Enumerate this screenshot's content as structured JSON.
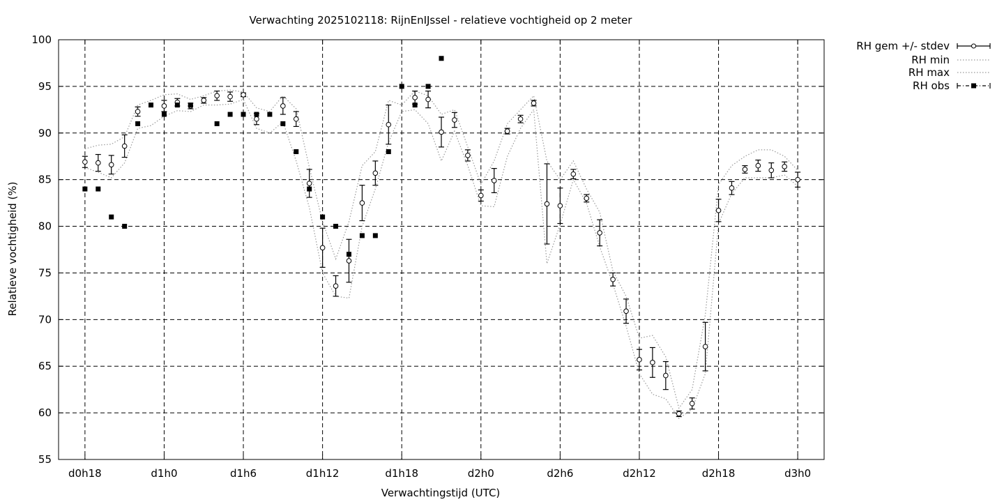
{
  "chart_data": {
    "type": "line",
    "title": "Verwachting 2025102118: RijnEnIJssel - relatieve vochtigheid op 2 meter",
    "xlabel": "Verwachtingstijd (UTC)",
    "ylabel": "Relatieve vochtigheid (%)",
    "xlim": [
      16,
      74
    ],
    "ylim": [
      55,
      100
    ],
    "x_ticks": [
      {
        "value": 18,
        "label": "d0h18"
      },
      {
        "value": 24,
        "label": "d1h0"
      },
      {
        "value": 30,
        "label": "d1h6"
      },
      {
        "value": 36,
        "label": "d1h12"
      },
      {
        "value": 42,
        "label": "d1h18"
      },
      {
        "value": 48,
        "label": "d2h0"
      },
      {
        "value": 54,
        "label": "d2h6"
      },
      {
        "value": 60,
        "label": "d2h12"
      },
      {
        "value": 66,
        "label": "d2h18"
      },
      {
        "value": 72,
        "label": "d3h0"
      }
    ],
    "y_ticks": [
      55,
      60,
      65,
      70,
      75,
      80,
      85,
      90,
      95,
      100
    ],
    "grid": true,
    "legend_position": "outside top-right",
    "x": [
      18,
      19,
      20,
      21,
      22,
      23,
      24,
      25,
      26,
      27,
      28,
      29,
      30,
      31,
      32,
      33,
      34,
      35,
      36,
      37,
      38,
      39,
      40,
      41,
      42,
      43,
      44,
      45,
      46,
      47,
      48,
      49,
      50,
      51,
      52,
      53,
      54,
      55,
      56,
      57,
      58,
      59,
      60,
      61,
      62,
      63,
      64,
      65,
      66,
      67,
      68,
      69,
      70,
      71,
      72
    ],
    "series": [
      {
        "name": "RH gem +/- stdev",
        "style": "errorbars",
        "mean": [
          86.9,
          86.8,
          86.6,
          88.6,
          92.3,
          null,
          92.9,
          93.3,
          92.9,
          93.5,
          94.0,
          93.9,
          94.1,
          91.5,
          null,
          92.9,
          91.5,
          84.6,
          77.7,
          73.6,
          76.3,
          82.5,
          85.7,
          90.9,
          null,
          93.8,
          93.6,
          90.1,
          91.4,
          87.6,
          83.3,
          84.9,
          90.2,
          91.5,
          93.2,
          82.4,
          82.2,
          85.6,
          83.0,
          79.3,
          74.3,
          70.9,
          65.7,
          65.4,
          64.0,
          59.9,
          61.0,
          67.1,
          81.7,
          84.1,
          86.1,
          86.5,
          86.0,
          86.4,
          85.0
        ],
        "stdev": [
          0.6,
          0.9,
          1.0,
          1.2,
          0.5,
          null,
          0.6,
          0.4,
          0.3,
          0.3,
          0.5,
          0.5,
          0.2,
          0.6,
          null,
          0.9,
          0.8,
          1.5,
          2.1,
          1.1,
          2.3,
          1.9,
          1.3,
          2.1,
          null,
          0.7,
          0.9,
          1.6,
          0.8,
          0.6,
          0.6,
          1.3,
          0.3,
          0.4,
          0.3,
          4.3,
          1.9,
          0.5,
          0.4,
          1.4,
          0.7,
          1.3,
          1.1,
          1.6,
          1.5,
          0.3,
          0.6,
          2.6,
          1.2,
          0.7,
          0.4,
          0.6,
          0.8,
          0.5,
          0.8
        ]
      },
      {
        "name": "RH min",
        "style": "dotted",
        "values": [
          86.3,
          85.8,
          85.2,
          86.8,
          90.5,
          90.8,
          91.8,
          92.4,
          92.3,
          93.0,
          93.0,
          93.1,
          93.6,
          90.5,
          90.0,
          91.2,
          87.0,
          82.0,
          75.0,
          72.5,
          72.3,
          80.0,
          84.0,
          89.0,
          92.3,
          92.5,
          91.0,
          87.0,
          90.2,
          86.5,
          82.2,
          82.1,
          87.5,
          90.5,
          92.5,
          76.0,
          80.2,
          85.0,
          82.5,
          77.8,
          73.8,
          69.3,
          64.2,
          62.0,
          61.5,
          59.4,
          60.4,
          64.2,
          80.3,
          83.5,
          85.2,
          85.2,
          85.2,
          85.5,
          84.3
        ]
      },
      {
        "name": "RH max",
        "style": "dotted",
        "values": [
          88.3,
          88.7,
          88.8,
          89.6,
          93.0,
          93.5,
          94.1,
          94.2,
          93.6,
          94.0,
          94.5,
          94.6,
          94.4,
          92.7,
          92.3,
          94.0,
          92.6,
          86.3,
          80.5,
          76.5,
          80.5,
          86.5,
          88.0,
          93.5,
          93.0,
          94.5,
          94.0,
          92.0,
          92.5,
          88.5,
          84.5,
          87.0,
          91.0,
          92.5,
          94.0,
          87.0,
          85.0,
          87.0,
          84.0,
          81.5,
          75.2,
          72.5,
          68.0,
          68.3,
          66.0,
          60.5,
          62.5,
          70.5,
          84.5,
          86.5,
          87.5,
          88.2,
          88.2,
          87.5,
          86.0
        ]
      },
      {
        "name": "RH obs",
        "style": "points",
        "values": [
          84,
          84,
          81,
          80,
          91,
          93,
          92,
          93,
          93,
          null,
          91,
          92,
          92,
          92,
          92,
          91,
          88,
          84,
          81,
          80,
          77,
          79,
          79,
          88,
          95,
          93,
          95,
          98,
          null,
          null,
          null,
          null,
          null,
          null,
          null,
          null,
          null,
          null,
          null,
          null,
          null,
          null,
          null,
          null,
          null,
          null,
          null,
          null,
          null,
          null,
          null,
          null,
          null,
          null,
          null
        ]
      }
    ]
  }
}
